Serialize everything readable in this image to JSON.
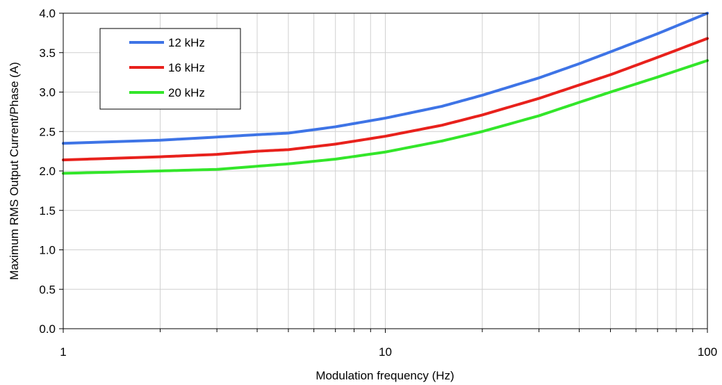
{
  "chart_data": {
    "type": "line",
    "title": "",
    "xlabel": "Modulation frequency (Hz)",
    "ylabel": "Maximum RMS Output Current/Phase (A)",
    "x_scale": "log",
    "xlim": [
      1,
      100
    ],
    "ylim": [
      0.0,
      4.0
    ],
    "x_tick_labels": [
      "1",
      "10",
      "100"
    ],
    "y_tick_labels": [
      "0.0",
      "0.5",
      "1.0",
      "1.5",
      "2.0",
      "2.5",
      "3.0",
      "3.5",
      "4.0"
    ],
    "grid": true,
    "legend_position": "top-left",
    "x": [
      1,
      2,
      3,
      4,
      5,
      7,
      10,
      15,
      20,
      30,
      40,
      50,
      70,
      100
    ],
    "series": [
      {
        "name": "12 kHz",
        "color": "#3e74e6",
        "values": [
          2.35,
          2.39,
          2.43,
          2.46,
          2.48,
          2.56,
          2.67,
          2.82,
          2.96,
          3.18,
          3.36,
          3.51,
          3.74,
          4.0
        ]
      },
      {
        "name": "16 kHz",
        "color": "#e8211c",
        "values": [
          2.14,
          2.18,
          2.21,
          2.25,
          2.27,
          2.34,
          2.44,
          2.58,
          2.71,
          2.92,
          3.09,
          3.22,
          3.44,
          3.68
        ]
      },
      {
        "name": "20 kHz",
        "color": "#33e62a",
        "values": [
          1.97,
          2.0,
          2.02,
          2.06,
          2.09,
          2.15,
          2.24,
          2.38,
          2.5,
          2.7,
          2.87,
          3.0,
          3.19,
          3.4
        ]
      }
    ]
  }
}
